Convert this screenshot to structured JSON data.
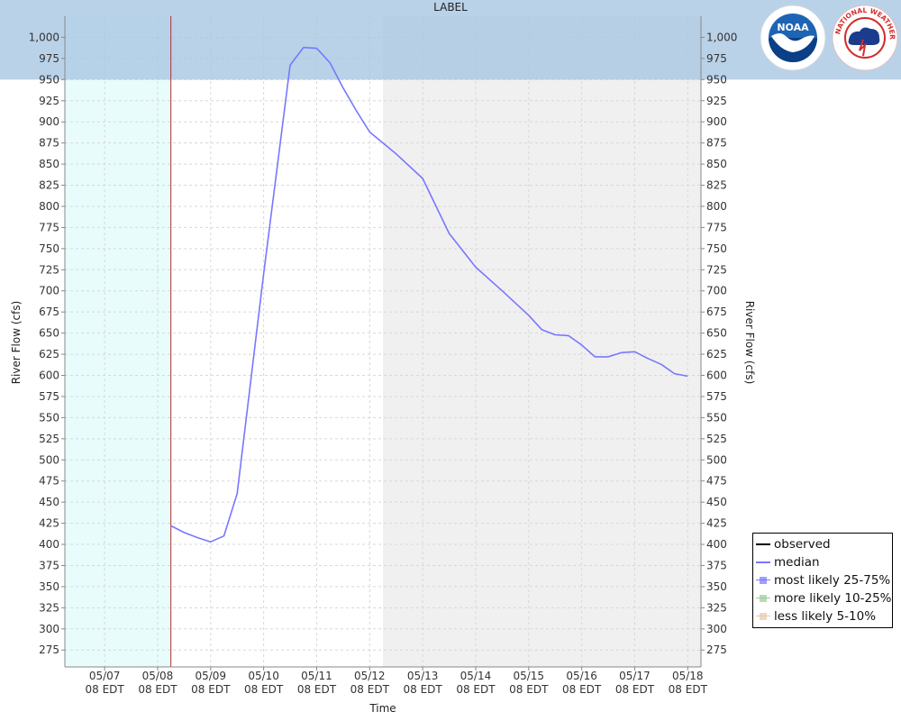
{
  "chart_data": {
    "type": "line",
    "title": "LABEL",
    "xlabel": "Time",
    "ylabel": "River Flow (cfs)",
    "ylabel_right": "River Flow (cfs)",
    "ylim": [
      255,
      1025
    ],
    "yticks": [
      275,
      300,
      325,
      350,
      375,
      400,
      425,
      450,
      475,
      500,
      525,
      550,
      575,
      600,
      625,
      650,
      675,
      700,
      725,
      750,
      775,
      800,
      825,
      850,
      875,
      900,
      925,
      950,
      975,
      1000
    ],
    "ytick_labels": [
      "275",
      "300",
      "325",
      "350",
      "375",
      "400",
      "425",
      "450",
      "475",
      "500",
      "525",
      "550",
      "575",
      "600",
      "625",
      "650",
      "675",
      "700",
      "725",
      "750",
      "775",
      "800",
      "825",
      "850",
      "875",
      "900",
      "925",
      "950",
      "975",
      "1,000"
    ],
    "xlim": [
      -0.75,
      11.25
    ],
    "xticks": [
      0,
      1,
      2,
      3,
      4,
      5,
      6,
      7,
      8,
      9,
      10,
      11
    ],
    "xtick_labels": [
      [
        "05/07",
        "08 EDT"
      ],
      [
        "05/08",
        "08 EDT"
      ],
      [
        "05/09",
        "08 EDT"
      ],
      [
        "05/10",
        "08 EDT"
      ],
      [
        "05/11",
        "08 EDT"
      ],
      [
        "05/12",
        "08 EDT"
      ],
      [
        "05/13",
        "08 EDT"
      ],
      [
        "05/14",
        "08 EDT"
      ],
      [
        "05/15",
        "08 EDT"
      ],
      [
        "05/16",
        "08 EDT"
      ],
      [
        "05/17",
        "08 EDT"
      ],
      [
        "05/18",
        "08 EDT"
      ]
    ],
    "grid": true,
    "shaded_regions": [
      {
        "x0": -0.75,
        "x1": 1.25,
        "color": "#e8fcfc"
      },
      {
        "x0": 5.25,
        "x1": 11.25,
        "color": "#f0f0f0"
      }
    ],
    "top_band": {
      "y0": 950,
      "y1": 1025,
      "color": "#a9c7e2"
    },
    "current_time_x": 1.25,
    "series": [
      {
        "name": "median",
        "color": "#7777ff",
        "x": [
          1.25,
          1.5,
          1.75,
          2.0,
          2.25,
          2.5,
          3.0,
          3.5,
          3.75,
          4.0,
          4.25,
          4.5,
          4.75,
          5.0,
          5.5,
          6.0,
          6.5,
          7.0,
          7.5,
          8.0,
          8.25,
          8.5,
          8.75,
          9.0,
          9.25,
          9.5,
          9.75,
          10.0,
          10.25,
          10.5,
          10.75,
          11.0
        ],
        "values": [
          422,
          414,
          408,
          403,
          410,
          460,
          720,
          967,
          988,
          987,
          970,
          940,
          913,
          888,
          862,
          833,
          768,
          728,
          700,
          671,
          654,
          648,
          647,
          636,
          622,
          622,
          627,
          628,
          620,
          613,
          602,
          599
        ]
      }
    ],
    "legend": {
      "position": "bottom-right",
      "items": [
        {
          "label": "observed",
          "kind": "line",
          "color": "#000000"
        },
        {
          "label": "median",
          "kind": "line",
          "color": "#7777ff"
        },
        {
          "label": "most likely 25-75%",
          "kind": "box",
          "color": "#7777ff"
        },
        {
          "label": "more likely 10-25%",
          "kind": "box",
          "color": "#99cc99"
        },
        {
          "label": "less likely 5-10%",
          "kind": "box",
          "color": "#e8c8a8"
        }
      ]
    }
  },
  "logos": {
    "noaa": {
      "text": "NOAA",
      "color": "#0b4f9a"
    },
    "nws": {
      "text": "NATIONAL WEATHER SERVICE",
      "color": "#d22d2d"
    }
  }
}
